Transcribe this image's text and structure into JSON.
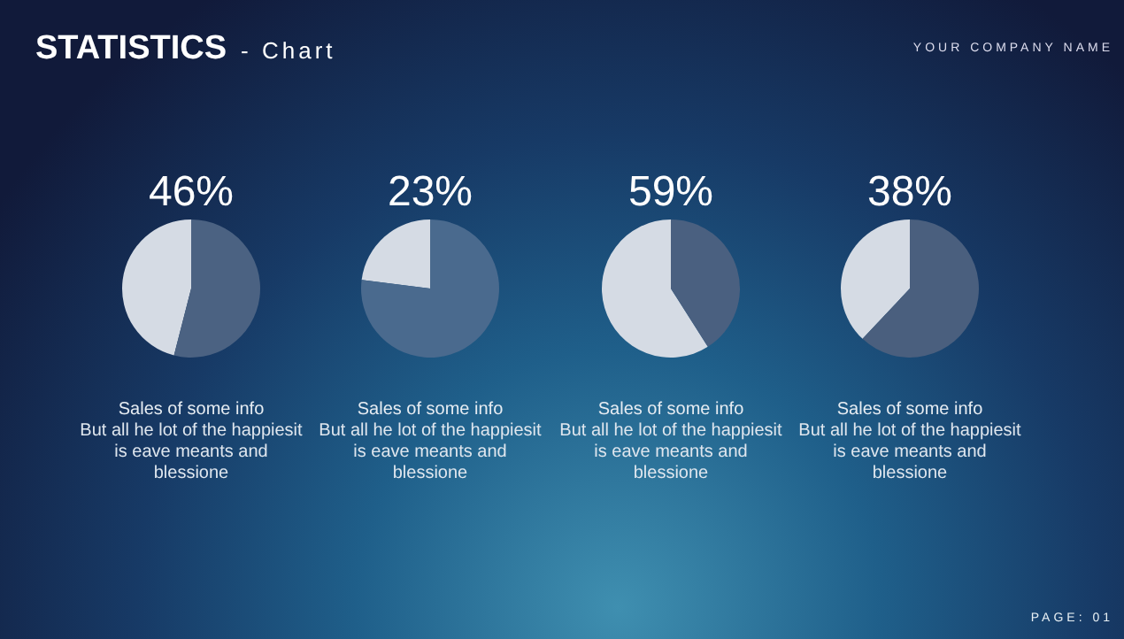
{
  "chart_data": [
    {
      "type": "other",
      "title": "STATISTICS",
      "subtitle": "- Chart",
      "annotations": [
        "YOUR COMPANY NAME",
        "PAGE: 01"
      ]
    },
    {
      "type": "pie",
      "categories": [
        null,
        null
      ],
      "values": [
        46,
        54
      ],
      "colors": [
        "#d5dbe4",
        "#4b6282"
      ],
      "value_labels": [
        "46%",
        null
      ],
      "subtitle": "Sales of some info",
      "annotations": [
        "But all he lot of the happiesit is eave meants and blessione"
      ]
    },
    {
      "type": "pie",
      "categories": [
        null,
        null
      ],
      "values": [
        23,
        77
      ],
      "colors": [
        "#d5dbe4",
        "#4a6a8e"
      ],
      "value_labels": [
        "23%",
        null
      ],
      "subtitle": "Sales of some info",
      "annotations": [
        "But all he lot of the happiesit is eave meants and blessione"
      ]
    },
    {
      "type": "pie",
      "categories": [
        null,
        null
      ],
      "values": [
        59,
        41
      ],
      "colors": [
        "#d5dbe4",
        "#4a6080"
      ],
      "value_labels": [
        "59%",
        null
      ],
      "subtitle": "Sales of some info",
      "annotations": [
        "But all he lot of the happiesit is eave meants and blessione"
      ]
    },
    {
      "type": "pie",
      "categories": [
        null,
        null
      ],
      "values": [
        38,
        62
      ],
      "colors": [
        "#d5dbe4",
        "#4a5f7e"
      ],
      "value_labels": [
        "38%",
        null
      ],
      "subtitle": "Sales of some info",
      "annotations": [
        "But all he lot of the happiesit is eave meants and blessione"
      ]
    }
  ]
}
